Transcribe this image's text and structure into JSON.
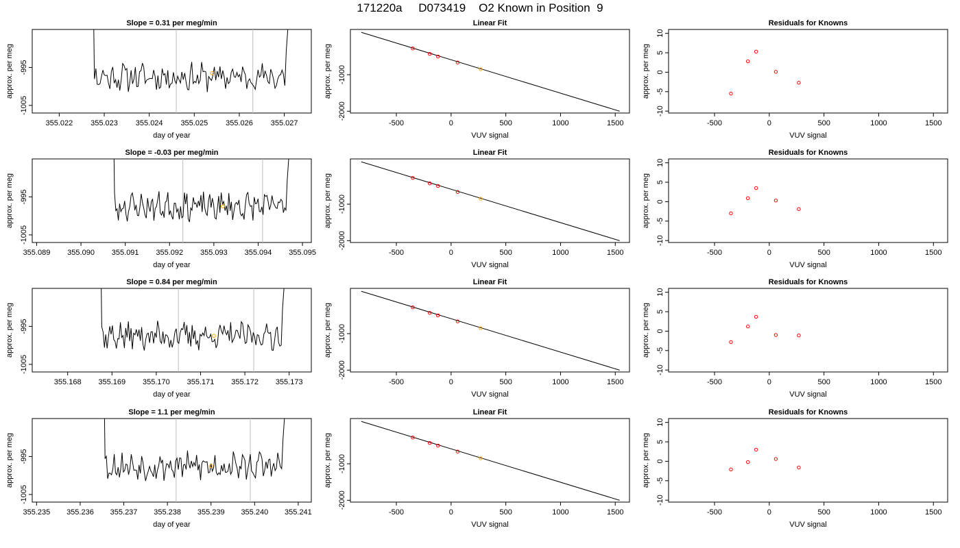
{
  "page_title": "171220a     D073419    O2 Known in Position  9",
  "colors": {
    "trace": "#000000",
    "vline": "#bebebe",
    "highlight": "#ffa500",
    "residual": "#ff0000",
    "fit_point": "#ff0000"
  },
  "chart_data": [
    {
      "type": "line",
      "row": 0,
      "title": "Slope =  0.31  per meg/min",
      "xlabel": "day of year",
      "ylabel": "approx. per meg",
      "xlim": [
        355.0214,
        355.0276
      ],
      "ylim": [
        -1007,
        -985
      ],
      "xticks": [
        355.022,
        355.023,
        355.024,
        355.025,
        355.026,
        355.027
      ],
      "xtick_labels": [
        "355.022",
        "355.023",
        "355.024",
        "355.025",
        "355.026",
        "355.027"
      ],
      "yticks": [
        -1005,
        -995
      ],
      "ytick_labels": [
        "-1005",
        "-995"
      ],
      "vlines": [
        355.0246,
        355.0263
      ],
      "highlight_point": {
        "x": 355.0254,
        "y": -996.5
      },
      "trace_range": [
        355.0225,
        355.0272
      ],
      "trace_seed": 11
    },
    {
      "type": "line",
      "row": 1,
      "title": "Slope =  -0.03  per meg/min",
      "xlabel": "day of year",
      "ylabel": "approx. per meg",
      "xlim": [
        355.0889,
        355.0952
      ],
      "ylim": [
        -1007,
        -985
      ],
      "xticks": [
        355.089,
        355.09,
        355.091,
        355.092,
        355.093,
        355.094,
        355.095
      ],
      "xtick_labels": [
        "355.089",
        "355.090",
        "355.091",
        "355.092",
        "355.093",
        "355.094",
        "355.095"
      ],
      "yticks": [
        -1005,
        -995
      ],
      "ytick_labels": [
        "-1005",
        "-995"
      ],
      "vlines": [
        355.0923,
        355.0941
      ],
      "highlight_point": {
        "x": 355.0932,
        "y": -997.5
      },
      "trace_range": [
        355.0905,
        355.0948
      ],
      "trace_seed": 23
    },
    {
      "type": "line",
      "row": 2,
      "title": "Slope =  0.84  per meg/min",
      "xlabel": "day of year",
      "ylabel": "approx. per meg",
      "xlim": [
        355.1672,
        355.1735
      ],
      "ylim": [
        -1007,
        -985
      ],
      "xticks": [
        355.168,
        355.169,
        355.17,
        355.171,
        355.172,
        355.173
      ],
      "xtick_labels": [
        "355.168",
        "355.169",
        "355.170",
        "355.171",
        "355.172",
        "355.173"
      ],
      "yticks": [
        -1005,
        -995
      ],
      "ytick_labels": [
        "-1005",
        "-995"
      ],
      "vlines": [
        355.1705,
        355.1722
      ],
      "highlight_point": {
        "x": 355.1713,
        "y": -997.5
      },
      "trace_range": [
        355.1685,
        355.173
      ],
      "trace_seed": 37
    },
    {
      "type": "line",
      "row": 3,
      "title": "Slope =  1.1  per meg/min",
      "xlabel": "day of year",
      "ylabel": "approx. per meg",
      "xlim": [
        355.2349,
        355.2413
      ],
      "ylim": [
        -1007,
        -985
      ],
      "xticks": [
        355.235,
        355.236,
        355.237,
        355.238,
        355.239,
        355.24,
        355.241
      ],
      "xtick_labels": [
        "355.235",
        "355.236",
        "355.237",
        "355.238",
        "355.239",
        "355.240",
        "355.241"
      ],
      "yticks": [
        -1005,
        -995
      ],
      "ytick_labels": [
        "-1005",
        "-995"
      ],
      "vlines": [
        355.2382,
        355.2399
      ],
      "highlight_point": {
        "x": 355.239,
        "y": -997.5
      },
      "trace_range": [
        355.2363,
        355.2408
      ],
      "trace_seed": 53
    },
    {
      "type": "scatter",
      "row": 0,
      "title": "Linear Fit",
      "xlabel": "VUV signal",
      "ylabel": "approx. per meg",
      "xlim": [
        -920,
        1630
      ],
      "ylim": [
        -2050,
        240
      ],
      "xticks": [
        -500,
        0,
        500,
        1000,
        1500
      ],
      "xtick_labels": [
        "-500",
        "0",
        "500",
        "1000",
        "1500"
      ],
      "yticks": [
        -2000,
        -1000
      ],
      "ytick_labels": [
        "-2000",
        "-1000"
      ],
      "fit_line": {
        "x": [
          -820,
          1540
        ],
        "y": [
          160,
          -2000
        ]
      },
      "points": [
        {
          "x": -350,
          "y": -280
        },
        {
          "x": -195,
          "y": -430
        },
        {
          "x": -120,
          "y": -500
        },
        {
          "x": 60,
          "y": -665
        }
      ],
      "highlight_point": {
        "x": 270,
        "y": -850
      }
    },
    {
      "type": "scatter",
      "row": 1,
      "title": "Linear Fit",
      "xlabel": "VUV signal",
      "ylabel": "approx. per meg",
      "xlim": [
        -920,
        1630
      ],
      "ylim": [
        -2050,
        240
      ],
      "xticks": [
        -500,
        0,
        500,
        1000,
        1500
      ],
      "xtick_labels": [
        "-500",
        "0",
        "500",
        "1000",
        "1500"
      ],
      "yticks": [
        -2000,
        -1000
      ],
      "ytick_labels": [
        "-2000",
        "-1000"
      ],
      "fit_line": {
        "x": [
          -820,
          1540
        ],
        "y": [
          160,
          -2000
        ]
      },
      "points": [
        {
          "x": -350,
          "y": -280
        },
        {
          "x": -195,
          "y": -430
        },
        {
          "x": -120,
          "y": -500
        },
        {
          "x": 60,
          "y": -665
        }
      ],
      "highlight_point": {
        "x": 270,
        "y": -850
      }
    },
    {
      "type": "scatter",
      "row": 2,
      "title": "Linear Fit",
      "xlabel": "VUV signal",
      "ylabel": "approx. per meg",
      "xlim": [
        -920,
        1630
      ],
      "ylim": [
        -2050,
        240
      ],
      "xticks": [
        -500,
        0,
        500,
        1000,
        1500
      ],
      "xtick_labels": [
        "-500",
        "0",
        "500",
        "1000",
        "1500"
      ],
      "yticks": [
        -2000,
        -1000
      ],
      "ytick_labels": [
        "-2000",
        "-1000"
      ],
      "fit_line": {
        "x": [
          -820,
          1540
        ],
        "y": [
          160,
          -2000
        ]
      },
      "points": [
        {
          "x": -350,
          "y": -280
        },
        {
          "x": -195,
          "y": -430
        },
        {
          "x": -120,
          "y": -500
        },
        {
          "x": 60,
          "y": -665
        }
      ],
      "highlight_point": {
        "x": 270,
        "y": -850
      }
    },
    {
      "type": "scatter",
      "row": 3,
      "title": "Linear Fit",
      "xlabel": "VUV signal",
      "ylabel": "approx. per meg",
      "xlim": [
        -920,
        1630
      ],
      "ylim": [
        -2050,
        240
      ],
      "xticks": [
        -500,
        0,
        500,
        1000,
        1500
      ],
      "xtick_labels": [
        "-500",
        "0",
        "500",
        "1000",
        "1500"
      ],
      "yticks": [
        -2000,
        -1000
      ],
      "ytick_labels": [
        "-2000",
        "-1000"
      ],
      "fit_line": {
        "x": [
          -820,
          1540
        ],
        "y": [
          160,
          -2000
        ]
      },
      "points": [
        {
          "x": -350,
          "y": -280
        },
        {
          "x": -195,
          "y": -430
        },
        {
          "x": -120,
          "y": -500
        },
        {
          "x": 60,
          "y": -665
        }
      ],
      "highlight_point": {
        "x": 270,
        "y": -850
      }
    },
    {
      "type": "scatter",
      "row": 0,
      "title": "Residuals for Knowns",
      "xlabel": "VUV signal",
      "ylabel": "approx. per meg",
      "xlim": [
        -920,
        1630
      ],
      "ylim": [
        -10.5,
        11
      ],
      "xticks": [
        -500,
        0,
        500,
        1000,
        1500
      ],
      "xtick_labels": [
        "-500",
        "0",
        "500",
        "1000",
        "1500"
      ],
      "yticks": [
        -10,
        -5,
        0,
        5,
        10
      ],
      "ytick_labels": [
        "-10",
        "-5",
        "0",
        "5",
        "10"
      ],
      "points": [
        {
          "x": -350,
          "y": -5.5
        },
        {
          "x": -195,
          "y": 2.8
        },
        {
          "x": -120,
          "y": 5.3
        },
        {
          "x": 60,
          "y": 0.1
        },
        {
          "x": 270,
          "y": -2.7
        }
      ]
    },
    {
      "type": "scatter",
      "row": 1,
      "title": "Residuals for Knowns",
      "xlabel": "VUV signal",
      "ylabel": "approx. per meg",
      "xlim": [
        -920,
        1630
      ],
      "ylim": [
        -10.5,
        11
      ],
      "xticks": [
        -500,
        0,
        500,
        1000,
        1500
      ],
      "xtick_labels": [
        "-500",
        "0",
        "500",
        "1000",
        "1500"
      ],
      "yticks": [
        -10,
        -5,
        0,
        5,
        10
      ],
      "ytick_labels": [
        "-10",
        "-5",
        "0",
        "5",
        "10"
      ],
      "points": [
        {
          "x": -350,
          "y": -3.0
        },
        {
          "x": -195,
          "y": 0.9
        },
        {
          "x": -120,
          "y": 3.5
        },
        {
          "x": 60,
          "y": 0.3
        },
        {
          "x": 270,
          "y": -1.9
        }
      ]
    },
    {
      "type": "scatter",
      "row": 2,
      "title": "Residuals for Knowns",
      "xlabel": "VUV signal",
      "ylabel": "approx. per meg",
      "xlim": [
        -920,
        1630
      ],
      "ylim": [
        -10.5,
        11
      ],
      "xticks": [
        -500,
        0,
        500,
        1000,
        1500
      ],
      "xtick_labels": [
        "-500",
        "0",
        "500",
        "1000",
        "1500"
      ],
      "yticks": [
        -10,
        -5,
        0,
        5,
        10
      ],
      "ytick_labels": [
        "-10",
        "-5",
        "0",
        "5",
        "10"
      ],
      "points": [
        {
          "x": -350,
          "y": -2.8
        },
        {
          "x": -195,
          "y": 1.2
        },
        {
          "x": -120,
          "y": 3.7
        },
        {
          "x": 60,
          "y": -1.0
        },
        {
          "x": 270,
          "y": -1.1
        }
      ]
    },
    {
      "type": "scatter",
      "row": 3,
      "title": "Residuals for Knowns",
      "xlabel": "VUV signal",
      "ylabel": "approx. per meg",
      "xlim": [
        -920,
        1630
      ],
      "ylim": [
        -10.5,
        11
      ],
      "xticks": [
        -500,
        0,
        500,
        1000,
        1500
      ],
      "xtick_labels": [
        "-500",
        "0",
        "500",
        "1000",
        "1500"
      ],
      "yticks": [
        -10,
        -5,
        0,
        5,
        10
      ],
      "ytick_labels": [
        "-10",
        "-5",
        "0",
        "5",
        "10"
      ],
      "points": [
        {
          "x": -350,
          "y": -2.1
        },
        {
          "x": -195,
          "y": -0.2
        },
        {
          "x": -120,
          "y": 3.0
        },
        {
          "x": 60,
          "y": 0.6
        },
        {
          "x": 270,
          "y": -1.6
        }
      ]
    }
  ]
}
